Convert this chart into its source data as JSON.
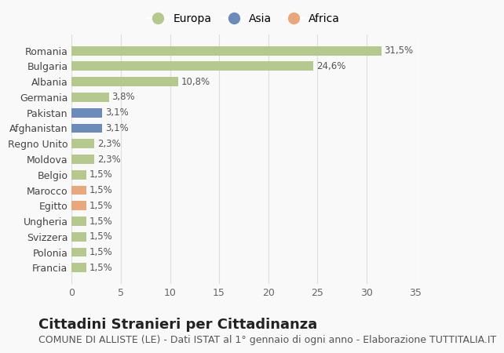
{
  "countries": [
    "Francia",
    "Polonia",
    "Svizzera",
    "Ungheria",
    "Egitto",
    "Marocco",
    "Belgio",
    "Moldova",
    "Regno Unito",
    "Afghanistan",
    "Pakistan",
    "Germania",
    "Albania",
    "Bulgaria",
    "Romania"
  ],
  "values": [
    1.5,
    1.5,
    1.5,
    1.5,
    1.5,
    1.5,
    1.5,
    2.3,
    2.3,
    3.1,
    3.1,
    3.8,
    10.8,
    24.6,
    31.5
  ],
  "labels": [
    "1,5%",
    "1,5%",
    "1,5%",
    "1,5%",
    "1,5%",
    "1,5%",
    "1,5%",
    "2,3%",
    "2,3%",
    "3,1%",
    "3,1%",
    "3,8%",
    "10,8%",
    "24,6%",
    "31,5%"
  ],
  "continents": [
    "Europa",
    "Europa",
    "Europa",
    "Europa",
    "Africa",
    "Africa",
    "Europa",
    "Europa",
    "Europa",
    "Asia",
    "Asia",
    "Europa",
    "Europa",
    "Europa",
    "Europa"
  ],
  "colors": {
    "Europa": "#b5c98e",
    "Asia": "#6b8cba",
    "Africa": "#e8a87c"
  },
  "title": "Cittadini Stranieri per Cittadinanza",
  "subtitle": "COMUNE DI ALLISTE (LE) - Dati ISTAT al 1° gennaio di ogni anno - Elaborazione TUTTITALIA.IT",
  "xlim": [
    0,
    35
  ],
  "xticks": [
    0,
    5,
    10,
    15,
    20,
    25,
    30,
    35
  ],
  "background_color": "#f9f9f9",
  "grid_color": "#dddddd",
  "title_fontsize": 13,
  "subtitle_fontsize": 9,
  "label_fontsize": 8.5,
  "tick_fontsize": 9,
  "legend_fontsize": 10
}
